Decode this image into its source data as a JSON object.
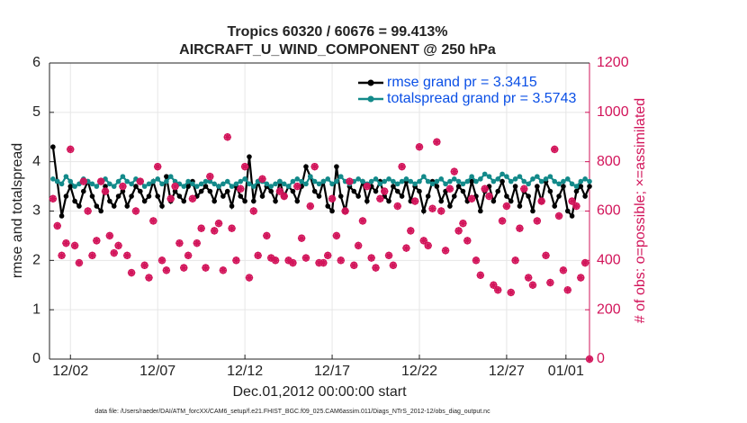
{
  "chart_data": {
    "type": "line",
    "title": "Tropics 60320 / 60676 = 99.413%",
    "subtitle": "AIRCRAFT_U_WIND_COMPONENT @ 250 hPa",
    "xlabel": "Dec.01,2012 00:00:00 start",
    "ylabel": "rmse and totalspread",
    "y2label": "# of obs: o=possible; ×=assimilated",
    "footnote": "data file: /Users/raeder/DAI/ATM_forcXX/CAM6_setup/f.e21.FHIST_BGC.f09_025.CAM6assim.011/Diags_NTrS_2012-12/obs_diag_output.nc",
    "grid": true,
    "legend": "upper right",
    "xlim": [
      -0.2,
      30.75
    ],
    "xticks": [
      {
        "value": 1,
        "label": "12/02"
      },
      {
        "value": 6,
        "label": "12/07"
      },
      {
        "value": 11,
        "label": "12/12"
      },
      {
        "value": 16,
        "label": "12/17"
      },
      {
        "value": 21,
        "label": "12/22"
      },
      {
        "value": 26,
        "label": "12/27"
      },
      {
        "value": 29.4,
        "label": "01/01"
      }
    ],
    "ylim": [
      0,
      6
    ],
    "yticks": [
      0,
      1,
      2,
      3,
      4,
      5,
      6
    ],
    "y2lim": [
      0,
      1200
    ],
    "y2ticks": [
      0,
      200,
      400,
      600,
      800,
      1000,
      1200
    ],
    "x": [
      0,
      0.25,
      0.5,
      0.75,
      1,
      1.25,
      1.5,
      1.75,
      2,
      2.25,
      2.5,
      2.75,
      3,
      3.25,
      3.5,
      3.75,
      4,
      4.25,
      4.5,
      4.75,
      5,
      5.25,
      5.5,
      5.75,
      6,
      6.25,
      6.5,
      6.75,
      7,
      7.25,
      7.5,
      7.75,
      8,
      8.25,
      8.5,
      8.75,
      9,
      9.25,
      9.5,
      9.75,
      10,
      10.25,
      10.5,
      10.75,
      11,
      11.25,
      11.5,
      11.75,
      12,
      12.25,
      12.5,
      12.75,
      13,
      13.25,
      13.5,
      13.75,
      14,
      14.25,
      14.5,
      14.75,
      15,
      15.25,
      15.5,
      15.75,
      16,
      16.25,
      16.5,
      16.75,
      17,
      17.25,
      17.5,
      17.75,
      18,
      18.25,
      18.5,
      18.75,
      19,
      19.25,
      19.5,
      19.75,
      20,
      20.25,
      20.5,
      20.75,
      21,
      21.25,
      21.5,
      21.75,
      22,
      22.25,
      22.5,
      22.75,
      23,
      23.25,
      23.5,
      23.75,
      24,
      24.25,
      24.5,
      24.75,
      25,
      25.25,
      25.5,
      25.75,
      26,
      26.25,
      26.5,
      26.75,
      27,
      27.25,
      27.5,
      27.75,
      28,
      28.25,
      28.5,
      28.75,
      29,
      29.25,
      29.5,
      29.75,
      30,
      30.25,
      30.5,
      30.75
    ],
    "series": [
      {
        "name": "rmse grand pr = 3.3415",
        "color": "#000000",
        "values": [
          4.3,
          3.6,
          2.9,
          3.3,
          3.5,
          3.2,
          3.1,
          3.4,
          3.6,
          3.3,
          3.1,
          3.0,
          3.5,
          3.2,
          3.1,
          3.3,
          3.4,
          3.1,
          3.3,
          3.5,
          3.4,
          3.2,
          3.3,
          3.6,
          3.3,
          3.1,
          3.7,
          3.2,
          3.4,
          3.3,
          3.2,
          3.5,
          3.6,
          3.3,
          3.4,
          3.5,
          3.4,
          3.2,
          3.5,
          3.3,
          3.4,
          3.1,
          3.5,
          3.3,
          3.2,
          4.1,
          3.2,
          3.6,
          3.3,
          3.5,
          3.4,
          3.2,
          3.6,
          3.3,
          3.5,
          3.4,
          3.2,
          3.5,
          3.9,
          3.7,
          3.4,
          3.3,
          3.6,
          3.1,
          3.0,
          3.9,
          3.3,
          3.0,
          3.5,
          3.4,
          3.3,
          3.6,
          3.2,
          3.5,
          3.4,
          3.6,
          3.3,
          3.2,
          3.5,
          3.4,
          3.3,
          3.6,
          3.2,
          3.5,
          3.4,
          3.0,
          3.3,
          3.6,
          3.5,
          3.2,
          3.4,
          3.1,
          3.3,
          3.5,
          3.4,
          3.2,
          3.6,
          3.3,
          3.0,
          3.4,
          3.5,
          3.2,
          3.4,
          3.6,
          3.3,
          3.2,
          3.5,
          3.1,
          3.4,
          3.3,
          3.0,
          3.5,
          3.2,
          3.6,
          3.4,
          3.1,
          3.3,
          3.5,
          3.0,
          2.9,
          3.4,
          3.5,
          3.3,
          3.5
        ]
      },
      {
        "name": "totalspread grand pr = 3.5743",
        "color": "#138a8a",
        "values": [
          3.65,
          3.6,
          3.55,
          3.7,
          3.6,
          3.5,
          3.55,
          3.65,
          3.6,
          3.55,
          3.5,
          3.6,
          3.65,
          3.55,
          3.5,
          3.6,
          3.7,
          3.6,
          3.55,
          3.65,
          3.6,
          3.5,
          3.55,
          3.6,
          3.65,
          3.55,
          3.6,
          3.7,
          3.6,
          3.55,
          3.5,
          3.6,
          3.55,
          3.5,
          3.55,
          3.6,
          3.6,
          3.55,
          3.5,
          3.55,
          3.6,
          3.5,
          3.55,
          3.6,
          3.65,
          3.55,
          3.5,
          3.6,
          3.6,
          3.55,
          3.5,
          3.55,
          3.6,
          3.55,
          3.5,
          3.6,
          3.65,
          3.6,
          3.55,
          3.7,
          3.6,
          3.55,
          3.6,
          3.65,
          3.55,
          3.6,
          3.7,
          3.6,
          3.55,
          3.6,
          3.65,
          3.6,
          3.55,
          3.6,
          3.65,
          3.55,
          3.6,
          3.65,
          3.6,
          3.55,
          3.6,
          3.65,
          3.6,
          3.55,
          3.6,
          3.7,
          3.6,
          3.55,
          3.6,
          3.65,
          3.55,
          3.6,
          3.65,
          3.6,
          3.55,
          3.6,
          3.7,
          3.6,
          3.65,
          3.75,
          3.7,
          3.6,
          3.65,
          3.75,
          3.7,
          3.6,
          3.65,
          3.7,
          3.6,
          3.55,
          3.65,
          3.7,
          3.6,
          3.65,
          3.7,
          3.6,
          3.55,
          3.6,
          3.65,
          3.55,
          3.5,
          3.6,
          3.65,
          3.6
        ]
      },
      {
        "name": "# of obs",
        "color": "#d2145a",
        "axis": "y2",
        "marker": "asterisk",
        "values": [
          650,
          540,
          420,
          470,
          850,
          460,
          390,
          720,
          600,
          420,
          480,
          720,
          680,
          500,
          430,
          460,
          700,
          420,
          350,
          600,
          720,
          380,
          330,
          560,
          780,
          400,
          360,
          650,
          700,
          470,
          370,
          420,
          650,
          470,
          530,
          370,
          740,
          520,
          550,
          360,
          900,
          530,
          400,
          690,
          780,
          330,
          600,
          420,
          730,
          500,
          410,
          400,
          680,
          660,
          400,
          390,
          700,
          490,
          410,
          620,
          780,
          390,
          390,
          420,
          650,
          500,
          400,
          600,
          720,
          380,
          460,
          560,
          700,
          410,
          370,
          650,
          680,
          420,
          380,
          620,
          780,
          450,
          520,
          640,
          860,
          480,
          460,
          610,
          880,
          600,
          440,
          690,
          760,
          520,
          550,
          480,
          650,
          400,
          340,
          690,
          660,
          300,
          280,
          560,
          620,
          270,
          400,
          530,
          690,
          330,
          300,
          560,
          640,
          420,
          310,
          850,
          580,
          360,
          280,
          640,
          620,
          330,
          390,
          0
        ]
      }
    ]
  }
}
